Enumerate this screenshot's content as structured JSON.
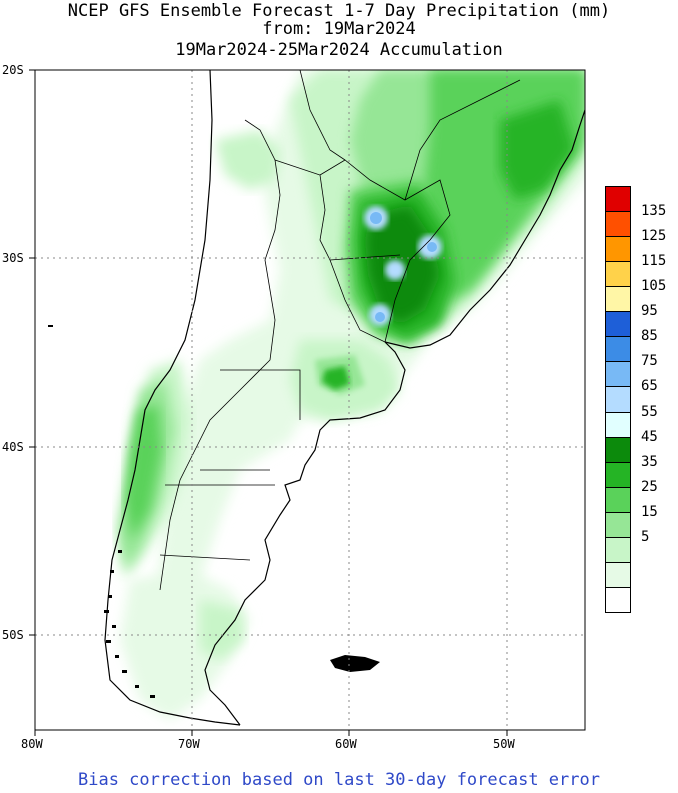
{
  "title": {
    "line1": "NCEP GFS Ensemble Forecast 1-7 Day Precipitation (mm)",
    "line2": "from: 19Mar2024",
    "line3": "19Mar2024-25Mar2024 Accumulation"
  },
  "axes": {
    "lat_labels": [
      "20S",
      "30S",
      "40S",
      "50S"
    ],
    "lon_labels": [
      "80W",
      "70W",
      "60W",
      "50W"
    ]
  },
  "legend": {
    "levels": [
      {
        "label": "135",
        "color": "#e00000"
      },
      {
        "label": "125",
        "color": "#ff5000"
      },
      {
        "label": "115",
        "color": "#ff9600"
      },
      {
        "label": "105",
        "color": "#ffd24a"
      },
      {
        "label": "95",
        "color": "#fff6a6"
      },
      {
        "label": "85",
        "color": "#1e5fd8"
      },
      {
        "label": "75",
        "color": "#3c8ce6"
      },
      {
        "label": "65",
        "color": "#78b9f5"
      },
      {
        "label": "55",
        "color": "#b4dcff"
      },
      {
        "label": "45",
        "color": "#e1ffff"
      },
      {
        "label": "35",
        "color": "#0c8a0c"
      },
      {
        "label": "25",
        "color": "#25b425"
      },
      {
        "label": "15",
        "color": "#5ad25a"
      },
      {
        "label": "5",
        "color": "#96e696"
      },
      {
        "label": "",
        "color": "#c8f5c8"
      },
      {
        "label": "",
        "color": "#e6fae6"
      },
      {
        "label": "",
        "color": "#ffffff"
      }
    ]
  },
  "footer": "Bias correction based on last 30-day forecast error"
}
